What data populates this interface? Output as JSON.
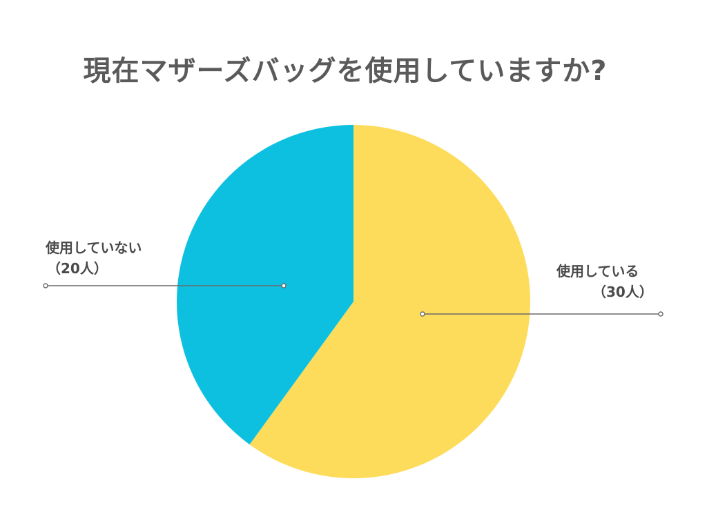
{
  "chart_data": {
    "type": "pie",
    "title": "現在マザーズバッグを使用していますか?",
    "slices": [
      {
        "label": "使用している",
        "count_label": "（30人）",
        "value": 30,
        "color": "#fddc5c"
      },
      {
        "label": "使用していない",
        "count_label": "（20人）",
        "value": 20,
        "color": "#0ec0e0"
      }
    ],
    "start_angle": "12 o'clock",
    "direction": "clockwise",
    "legend": "none",
    "leader_line_color": "#6a6a6a"
  }
}
